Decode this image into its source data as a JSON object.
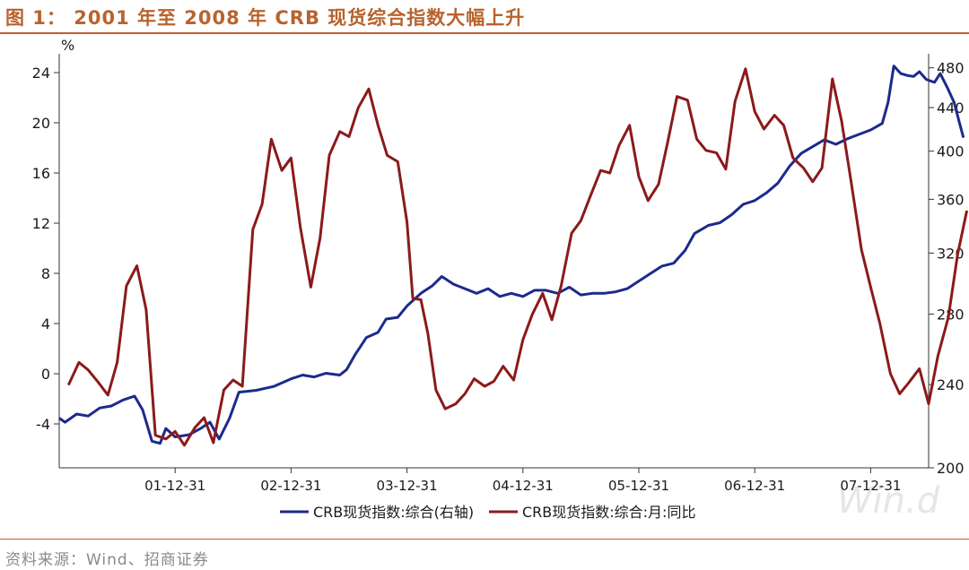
{
  "header": {
    "title": "图 1：   2001 年至 2008 年 CRB 现货综合指数大幅上升"
  },
  "footer": {
    "source": "资料来源：Wind、招商证券"
  },
  "colors": {
    "title": "#b8632e",
    "rule": "#c0602c",
    "index_series": "#1c2a8c",
    "yoy_series": "#8b1a1a"
  },
  "chart_data": {
    "type": "line",
    "watermark": "Win.d",
    "left_unit": "%",
    "x_ticks": [
      "01-12-31",
      "02-12-31",
      "03-12-31",
      "04-12-31",
      "05-12-31",
      "06-12-31",
      "07-12-31"
    ],
    "x_range": [
      2001.0,
      2008.5
    ],
    "y_left": {
      "range": [
        -7.5,
        25.5
      ],
      "ticks": [
        -4,
        0,
        4,
        8,
        12,
        16,
        20,
        24
      ]
    },
    "y_right": {
      "scale": "log",
      "range": [
        200,
        495
      ],
      "ticks": [
        200,
        240,
        280,
        320,
        360,
        400,
        440,
        480
      ]
    },
    "legend_position": "bottom",
    "series": [
      {
        "name": "CRB现货指数:综合(右轴)",
        "axis": "right",
        "points": [
          [
            2001.0,
            223
          ],
          [
            2001.05,
            221
          ],
          [
            2001.15,
            225
          ],
          [
            2001.25,
            224
          ],
          [
            2001.35,
            228
          ],
          [
            2001.45,
            229
          ],
          [
            2001.55,
            232
          ],
          [
            2001.65,
            234
          ],
          [
            2001.72,
            227
          ],
          [
            2001.8,
            212
          ],
          [
            2001.87,
            211
          ],
          [
            2001.92,
            218
          ],
          [
            2002.0,
            214
          ],
          [
            2002.12,
            215
          ],
          [
            2002.22,
            218
          ],
          [
            2002.3,
            221
          ],
          [
            2002.38,
            213
          ],
          [
            2002.47,
            223
          ],
          [
            2002.55,
            236
          ],
          [
            2002.7,
            237
          ],
          [
            2002.85,
            239
          ],
          [
            2003.0,
            243
          ],
          [
            2003.1,
            245
          ],
          [
            2003.2,
            244
          ],
          [
            2003.3,
            246
          ],
          [
            2003.42,
            245
          ],
          [
            2003.48,
            248
          ],
          [
            2003.55,
            256
          ],
          [
            2003.65,
            266
          ],
          [
            2003.75,
            269
          ],
          [
            2003.82,
            277
          ],
          [
            2003.92,
            278
          ],
          [
            2004.0,
            285
          ],
          [
            2004.12,
            293
          ],
          [
            2004.22,
            298
          ],
          [
            2004.3,
            304
          ],
          [
            2004.4,
            299
          ],
          [
            2004.5,
            296
          ],
          [
            2004.6,
            293
          ],
          [
            2004.7,
            296
          ],
          [
            2004.8,
            291
          ],
          [
            2004.9,
            293
          ],
          [
            2005.0,
            291
          ],
          [
            2005.1,
            295
          ],
          [
            2005.2,
            295
          ],
          [
            2005.3,
            293
          ],
          [
            2005.4,
            297
          ],
          [
            2005.5,
            292
          ],
          [
            2005.6,
            293
          ],
          [
            2005.7,
            293
          ],
          [
            2005.8,
            294
          ],
          [
            2005.9,
            296
          ],
          [
            2006.0,
            301
          ],
          [
            2006.1,
            306
          ],
          [
            2006.2,
            311
          ],
          [
            2006.3,
            313
          ],
          [
            2006.4,
            322
          ],
          [
            2006.48,
            334
          ],
          [
            2006.6,
            340
          ],
          [
            2006.7,
            342
          ],
          [
            2006.8,
            348
          ],
          [
            2006.9,
            356
          ],
          [
            2007.0,
            359
          ],
          [
            2007.1,
            365
          ],
          [
            2007.2,
            373
          ],
          [
            2007.3,
            387
          ],
          [
            2007.4,
            398
          ],
          [
            2007.5,
            404
          ],
          [
            2007.6,
            410
          ],
          [
            2007.7,
            406
          ],
          [
            2007.8,
            411
          ],
          [
            2007.9,
            415
          ],
          [
            2008.0,
            419
          ],
          [
            2008.1,
            425
          ],
          [
            2008.15,
            445
          ],
          [
            2008.2,
            482
          ],
          [
            2008.26,
            474
          ],
          [
            2008.32,
            472
          ],
          [
            2008.37,
            471
          ],
          [
            2008.42,
            476
          ],
          [
            2008.48,
            468
          ],
          [
            2008.55,
            465
          ],
          [
            2008.6,
            474
          ],
          [
            2008.66,
            460
          ],
          [
            2008.72,
            445
          ],
          [
            2008.76,
            428
          ],
          [
            2008.8,
            412
          ]
        ]
      },
      {
        "name": "CRB现货指数:综合:月:同比",
        "axis": "left",
        "points": [
          [
            2001.08,
            -0.9
          ],
          [
            2001.17,
            0.9
          ],
          [
            2001.25,
            0.3
          ],
          [
            2001.33,
            -0.6
          ],
          [
            2001.42,
            -1.7
          ],
          [
            2001.5,
            0.9
          ],
          [
            2001.58,
            7.0
          ],
          [
            2001.67,
            8.6
          ],
          [
            2001.75,
            5.1
          ],
          [
            2001.83,
            -4.9
          ],
          [
            2001.92,
            -5.2
          ],
          [
            2002.0,
            -4.6
          ],
          [
            2002.08,
            -5.7
          ],
          [
            2002.17,
            -4.3
          ],
          [
            2002.25,
            -3.5
          ],
          [
            2002.33,
            -5.5
          ],
          [
            2002.42,
            -1.3
          ],
          [
            2002.5,
            -0.5
          ],
          [
            2002.58,
            -1.0
          ],
          [
            2002.67,
            11.5
          ],
          [
            2002.75,
            13.5
          ],
          [
            2002.83,
            18.7
          ],
          [
            2002.92,
            16.2
          ],
          [
            2003.0,
            17.2
          ],
          [
            2003.08,
            11.7
          ],
          [
            2003.17,
            6.9
          ],
          [
            2003.25,
            10.8
          ],
          [
            2003.33,
            17.4
          ],
          [
            2003.42,
            19.3
          ],
          [
            2003.5,
            18.9
          ],
          [
            2003.58,
            21.2
          ],
          [
            2003.67,
            22.7
          ],
          [
            2003.75,
            19.8
          ],
          [
            2003.83,
            17.4
          ],
          [
            2003.92,
            16.9
          ],
          [
            2004.0,
            12.1
          ],
          [
            2004.05,
            6.0
          ],
          [
            2004.12,
            5.9
          ],
          [
            2004.18,
            3.2
          ],
          [
            2004.25,
            -1.3
          ],
          [
            2004.33,
            -2.8
          ],
          [
            2004.42,
            -2.4
          ],
          [
            2004.5,
            -1.6
          ],
          [
            2004.58,
            -0.4
          ],
          [
            2004.67,
            -1.0
          ],
          [
            2004.75,
            -0.6
          ],
          [
            2004.83,
            0.6
          ],
          [
            2004.92,
            -0.5
          ],
          [
            2005.0,
            2.7
          ],
          [
            2005.08,
            4.7
          ],
          [
            2005.17,
            6.4
          ],
          [
            2005.25,
            4.3
          ],
          [
            2005.33,
            7.0
          ],
          [
            2005.42,
            11.2
          ],
          [
            2005.5,
            12.2
          ],
          [
            2005.58,
            14.1
          ],
          [
            2005.67,
            16.2
          ],
          [
            2005.75,
            16.0
          ],
          [
            2005.83,
            18.2
          ],
          [
            2005.92,
            19.8
          ],
          [
            2006.0,
            15.7
          ],
          [
            2006.08,
            13.8
          ],
          [
            2006.17,
            15.1
          ],
          [
            2006.25,
            18.5
          ],
          [
            2006.33,
            22.1
          ],
          [
            2006.42,
            21.8
          ],
          [
            2006.5,
            18.7
          ],
          [
            2006.58,
            17.8
          ],
          [
            2006.67,
            17.6
          ],
          [
            2006.75,
            16.3
          ],
          [
            2006.83,
            21.7
          ],
          [
            2006.92,
            24.3
          ],
          [
            2007.0,
            20.9
          ],
          [
            2007.08,
            19.5
          ],
          [
            2007.17,
            20.6
          ],
          [
            2007.25,
            19.8
          ],
          [
            2007.33,
            17.2
          ],
          [
            2007.42,
            16.4
          ],
          [
            2007.5,
            15.3
          ],
          [
            2007.58,
            16.4
          ],
          [
            2007.67,
            23.5
          ],
          [
            2007.75,
            20.1
          ],
          [
            2007.83,
            15.4
          ],
          [
            2007.92,
            9.9
          ],
          [
            2008.0,
            6.9
          ],
          [
            2008.08,
            4.0
          ],
          [
            2008.17,
            0.0
          ],
          [
            2008.25,
            -1.6
          ],
          [
            2008.33,
            -0.7
          ],
          [
            2008.42,
            0.4
          ],
          [
            2008.5,
            -2.4
          ],
          [
            2008.58,
            1.4
          ],
          [
            2008.67,
            4.5
          ],
          [
            2008.75,
            9.5
          ],
          [
            2008.83,
            13.0
          ]
        ]
      }
    ]
  }
}
